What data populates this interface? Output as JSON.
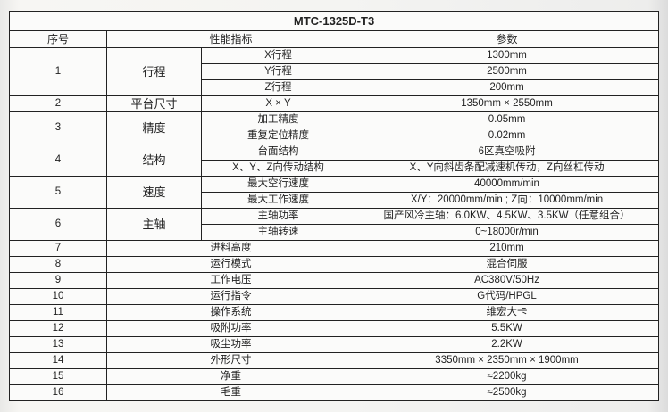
{
  "title": "MTC-1325D-T3",
  "headers": {
    "no": "序号",
    "spec": "性能指标",
    "param": "参数"
  },
  "groups": [
    {
      "no": "1",
      "name": "行程",
      "rows": [
        {
          "sub": "X行程",
          "value": "1300mm"
        },
        {
          "sub": "Y行程",
          "value": "2500mm"
        },
        {
          "sub": "Z行程",
          "value": "200mm"
        }
      ]
    },
    {
      "no": "2",
      "name": "平台尺寸",
      "rows": [
        {
          "sub": "X × Y",
          "value": "1350mm × 2550mm"
        }
      ]
    },
    {
      "no": "3",
      "name": "精度",
      "rows": [
        {
          "sub": "加工精度",
          "value": "0.05mm"
        },
        {
          "sub": "重复定位精度",
          "value": "0.02mm"
        }
      ]
    },
    {
      "no": "4",
      "name": "结构",
      "rows": [
        {
          "sub": "台面结构",
          "value": "6区真空吸附"
        },
        {
          "sub": "X、Y、Z向传动结构",
          "value": "X、Y向斜齿条配减速机传动，Z向丝杠传动"
        }
      ]
    },
    {
      "no": "5",
      "name": "速度",
      "rows": [
        {
          "sub": "最大空行速度",
          "value": "40000mm/min"
        },
        {
          "sub": "最大工作速度",
          "value": "X/Y：20000mm/min ; Z向：10000mm/min"
        }
      ]
    },
    {
      "no": "6",
      "name": "主轴",
      "rows": [
        {
          "sub": "主轴功率",
          "value": "国产风冷主轴：6.0KW、4.5KW、3.5KW（任意组合）"
        },
        {
          "sub": "主轴转速",
          "value": "0~18000r/min"
        }
      ]
    }
  ],
  "simple_rows": [
    {
      "no": "7",
      "name": "进料高度",
      "value": "210mm"
    },
    {
      "no": "8",
      "name": "运行模式",
      "value": "混合伺服"
    },
    {
      "no": "9",
      "name": "工作电压",
      "value": "AC380V/50Hz"
    },
    {
      "no": "10",
      "name": "运行指令",
      "value": "G代码/HPGL"
    },
    {
      "no": "11",
      "name": "操作系统",
      "value": "维宏大卡"
    },
    {
      "no": "12",
      "name": "吸附功率",
      "value": "5.5KW"
    },
    {
      "no": "13",
      "name": "吸尘功率",
      "value": "2.2KW"
    },
    {
      "no": "14",
      "name": "外形尺寸",
      "value": "3350mm × 2350mm × 1900mm"
    },
    {
      "no": "15",
      "name": "净重",
      "value": "≈2200kg"
    },
    {
      "no": "16",
      "name": "毛重",
      "value": "≈2500kg"
    }
  ]
}
